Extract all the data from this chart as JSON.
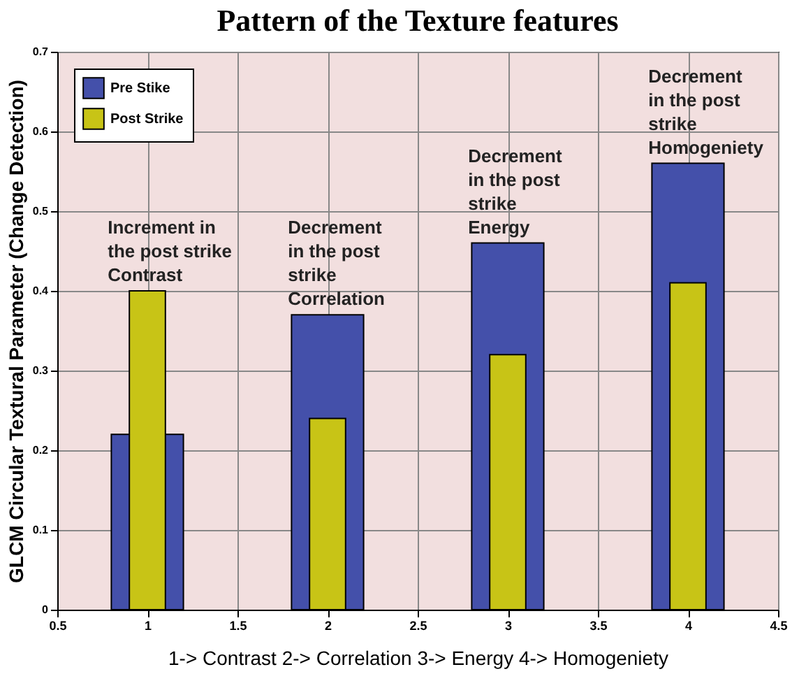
{
  "chart_data": {
    "type": "bar",
    "title": "Pattern of the Texture features",
    "xlabel": "1-> Contrast     2-> Correlation     3-> Energy     4-> Homogeniety",
    "ylabel": "GLCM Circular Textural Parameter (Change Detection)",
    "x": [
      1,
      2,
      3,
      4
    ],
    "series": [
      {
        "name": "Pre Stike",
        "color": "#4450aa",
        "values": [
          0.22,
          0.37,
          0.46,
          0.56
        ]
      },
      {
        "name": "Post Strike",
        "color": "#c8c416",
        "values": [
          0.4,
          0.24,
          0.32,
          0.41
        ]
      }
    ],
    "xlim": [
      0.5,
      4.5
    ],
    "xticks": [
      0.5,
      1,
      1.5,
      2,
      2.5,
      3,
      3.5,
      4,
      4.5
    ],
    "ylim": [
      0,
      0.7
    ],
    "yticks": [
      0,
      0.1,
      0.2,
      0.3,
      0.4,
      0.5,
      0.6,
      0.7
    ],
    "grid": true,
    "legend": "top left",
    "annotations": [
      "Increment in\nthe post strike\nContrast",
      "Decrement\nin the post\nstrike\nCorrelation",
      "Decrement\nin the post\nstrike\nEnergy",
      "Decrement\nin the post\nstrike\nHomogeniety"
    ]
  }
}
